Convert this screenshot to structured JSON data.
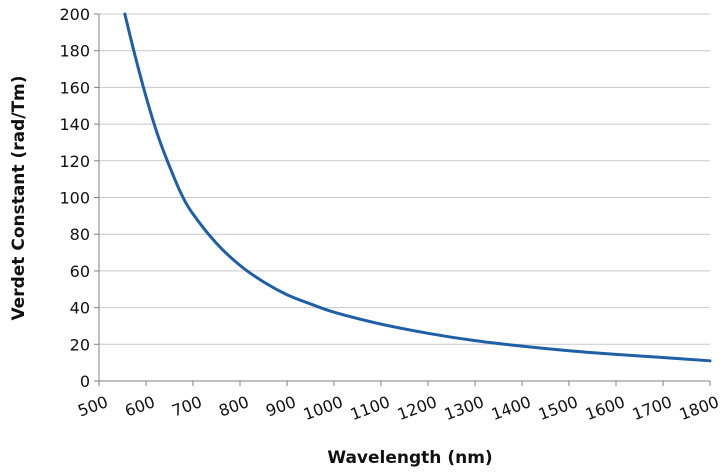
{
  "chart_data": {
    "type": "line",
    "title": "",
    "xlabel": "Wavelength (nm)",
    "ylabel": "Verdet Constant (rad/Tm)",
    "xlim": [
      500,
      1800
    ],
    "ylim": [
      0,
      200
    ],
    "x_ticks": [
      500,
      600,
      700,
      800,
      900,
      1000,
      1100,
      1200,
      1300,
      1400,
      1500,
      1600,
      1700,
      1800
    ],
    "y_ticks": [
      0,
      20,
      40,
      60,
      80,
      100,
      120,
      140,
      160,
      180,
      200
    ],
    "grid": {
      "x": false,
      "y": true
    },
    "legend": "none",
    "series": [
      {
        "color": "#1f5fa6",
        "x": [
          555,
          575,
          600,
          625,
          650,
          675,
          700,
          750,
          800,
          850,
          900,
          950,
          1000,
          1100,
          1200,
          1300,
          1400,
          1500,
          1600,
          1700,
          1800
        ],
        "y": [
          200,
          179,
          155,
          134,
          117,
          102,
          91,
          75,
          63,
          54,
          47,
          42,
          37.5,
          31,
          26,
          22,
          19,
          16.5,
          14.5,
          12.8,
          11
        ]
      }
    ]
  }
}
